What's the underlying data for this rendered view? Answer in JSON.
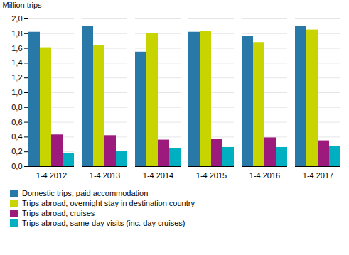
{
  "chart_data": {
    "type": "bar",
    "ylabel": "Million trips",
    "categories": [
      "1-4 2012",
      "1-4 2013",
      "1-4 2014",
      "1-4 2015",
      "1-4 2016",
      "1-4 2017"
    ],
    "series": [
      {
        "name": "Domestic trips, paid accommodation",
        "color": "#2878a8",
        "values": [
          1.82,
          1.9,
          1.55,
          1.82,
          1.76,
          1.9
        ]
      },
      {
        "name": "Trips abroad, overnight stay in destination country",
        "color": "#c8d400",
        "values": [
          1.61,
          1.64,
          1.8,
          1.83,
          1.68,
          1.85
        ]
      },
      {
        "name": "Trips abroad, cruises",
        "color": "#9b1a7c",
        "values": [
          0.43,
          0.42,
          0.36,
          0.37,
          0.39,
          0.35
        ]
      },
      {
        "name": "Trips abroad, same-day visits (inc. day cruises)",
        "color": "#00b0c0",
        "values": [
          0.18,
          0.21,
          0.25,
          0.26,
          0.26,
          0.27
        ]
      }
    ],
    "ylim": [
      0,
      2.0
    ],
    "yticks": [
      {
        "value": 0.0,
        "label": "0,0"
      },
      {
        "value": 0.2,
        "label": "0,2"
      },
      {
        "value": 0.4,
        "label": "0,4"
      },
      {
        "value": 0.6,
        "label": "0,6"
      },
      {
        "value": 0.8,
        "label": "0,8"
      },
      {
        "value": 1.0,
        "label": "1,0"
      },
      {
        "value": 1.2,
        "label": "1,2"
      },
      {
        "value": 1.4,
        "label": "1,4"
      },
      {
        "value": 1.6,
        "label": "1,6"
      },
      {
        "value": 1.8,
        "label": "1,8"
      },
      {
        "value": 2.0,
        "label": "2,0"
      }
    ],
    "grid": true,
    "legend": "bottom"
  }
}
